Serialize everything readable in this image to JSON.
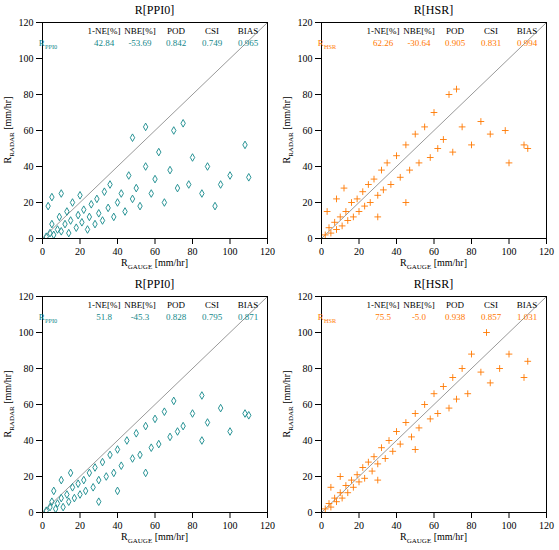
{
  "chart_data": [
    {
      "type": "scatter",
      "title": "R[PPI0]",
      "x_label": [
        "R",
        "GAUGE",
        " [mm/hr]"
      ],
      "y_label": [
        "R",
        "RADAR",
        " [mm/hr]"
      ],
      "color": "#13888a",
      "marker": "diamond",
      "xlim": [
        0,
        120
      ],
      "ylim": [
        0,
        120
      ],
      "xticks": [
        0,
        20,
        40,
        60,
        80,
        100,
        120
      ],
      "yticks": [
        0,
        20,
        40,
        60,
        80,
        100,
        120
      ],
      "stats": {
        "columns": [
          "1-NE[%]",
          "NBE[%]",
          "POD",
          "CSI",
          "BIAS"
        ],
        "row_label": [
          "R",
          "PPI0"
        ],
        "values": [
          42.84,
          -53.69,
          0.842,
          0.749,
          0.965
        ]
      },
      "x": [
        2,
        4,
        5,
        6,
        8,
        9,
        10,
        12,
        13,
        14,
        15,
        16,
        18,
        19,
        20,
        21,
        22,
        24,
        25,
        26,
        28,
        29,
        30,
        32,
        33,
        35,
        36,
        38,
        40,
        42,
        44,
        46,
        48,
        50,
        52,
        55,
        58,
        60,
        62,
        65,
        68,
        70,
        72,
        75,
        78,
        80,
        85,
        88,
        92,
        95,
        100,
        110,
        108,
        5,
        10,
        3,
        48,
        55
      ],
      "y": [
        1,
        3,
        8,
        2,
        5,
        12,
        4,
        8,
        15,
        3,
        10,
        20,
        6,
        13,
        24,
        9,
        16,
        5,
        12,
        19,
        8,
        22,
        14,
        10,
        26,
        17,
        30,
        12,
        20,
        25,
        15,
        35,
        22,
        28,
        18,
        40,
        25,
        33,
        48,
        20,
        38,
        60,
        28,
        64,
        30,
        45,
        25,
        40,
        18,
        30,
        35,
        34,
        52,
        23,
        25,
        18,
        56,
        62
      ]
    },
    {
      "type": "scatter",
      "title": "R[HSR]",
      "x_label": [
        "R",
        "GAUGE",
        " [mm/hr]"
      ],
      "y_label": [
        "R",
        "RADAR",
        " [mm/hr]"
      ],
      "color": "#ff7800",
      "marker": "plus",
      "xlim": [
        0,
        120
      ],
      "ylim": [
        0,
        120
      ],
      "xticks": [
        0,
        20,
        40,
        60,
        80,
        100,
        120
      ],
      "yticks": [
        0,
        20,
        40,
        60,
        80,
        100,
        120
      ],
      "stats": {
        "columns": [
          "1-NE[%]",
          "NBE[%]",
          "POD",
          "CSI",
          "BIAS"
        ],
        "row_label": [
          "R",
          "HSR"
        ],
        "values": [
          62.26,
          -30.64,
          0.905,
          0.831,
          0.994
        ]
      },
      "x": [
        2,
        4,
        5,
        7,
        8,
        10,
        11,
        13,
        14,
        16,
        17,
        19,
        20,
        22,
        23,
        25,
        26,
        28,
        30,
        32,
        33,
        35,
        37,
        40,
        42,
        45,
        47,
        50,
        52,
        55,
        58,
        60,
        62,
        65,
        68,
        70,
        75,
        80,
        85,
        90,
        98,
        100,
        108,
        110,
        3,
        8,
        12,
        30,
        45,
        72
      ],
      "y": [
        2,
        6,
        3,
        9,
        5,
        12,
        7,
        15,
        10,
        20,
        12,
        22,
        15,
        26,
        18,
        30,
        20,
        33,
        24,
        38,
        27,
        42,
        30,
        46,
        34,
        52,
        38,
        58,
        42,
        62,
        45,
        70,
        50,
        55,
        80,
        48,
        62,
        52,
        65,
        58,
        60,
        42,
        52,
        50,
        15,
        22,
        28,
        12,
        20,
        83
      ]
    },
    {
      "type": "scatter",
      "title": "R[PPI0]",
      "x_label": [
        "R",
        "GAUGE",
        " [mm/hr]"
      ],
      "y_label": [
        "R",
        "RADAR",
        " [mm/hr]"
      ],
      "color": "#13888a",
      "marker": "diamond",
      "xlim": [
        0,
        120
      ],
      "ylim": [
        0,
        120
      ],
      "xticks": [
        0,
        20,
        40,
        60,
        80,
        100,
        120
      ],
      "yticks": [
        0,
        20,
        40,
        60,
        80,
        100,
        120
      ],
      "stats": {
        "columns": [
          "1-NE[%]",
          "NBE[%]",
          "POD",
          "CSI",
          "BIAS"
        ],
        "row_label": [
          "R",
          "PPI0"
        ],
        "values": [
          51.8,
          -45.3,
          0.828,
          0.795,
          0.871
        ]
      },
      "x": [
        2,
        4,
        5,
        7,
        8,
        10,
        11,
        13,
        14,
        16,
        17,
        19,
        20,
        22,
        23,
        25,
        27,
        28,
        30,
        32,
        34,
        36,
        38,
        40,
        42,
        45,
        48,
        50,
        52,
        55,
        58,
        60,
        62,
        65,
        68,
        70,
        72,
        75,
        80,
        85,
        88,
        95,
        100,
        108,
        110,
        85,
        6,
        10,
        15,
        30,
        40,
        55
      ],
      "y": [
        1,
        3,
        6,
        2,
        5,
        8,
        3,
        10,
        6,
        14,
        8,
        16,
        10,
        18,
        12,
        22,
        14,
        25,
        18,
        28,
        20,
        32,
        22,
        35,
        26,
        40,
        30,
        44,
        32,
        48,
        36,
        52,
        38,
        56,
        42,
        62,
        45,
        48,
        55,
        40,
        50,
        58,
        45,
        55,
        54,
        65,
        12,
        18,
        22,
        6,
        12,
        22
      ]
    },
    {
      "type": "scatter",
      "title": "R[HSR]",
      "x_label": [
        "R",
        "GAUGE",
        " [mm/hr]"
      ],
      "y_label": [
        "R",
        "RADAR",
        " [mm/hr]"
      ],
      "color": "#ff7800",
      "marker": "plus",
      "xlim": [
        0,
        120
      ],
      "ylim": [
        0,
        120
      ],
      "xticks": [
        0,
        20,
        40,
        60,
        80,
        100,
        120
      ],
      "yticks": [
        0,
        20,
        40,
        60,
        80,
        100,
        120
      ],
      "stats": {
        "columns": [
          "1-NE[%]",
          "NBE[%]",
          "POD",
          "CSI",
          "BIAS"
        ],
        "row_label": [
          "R",
          "HSR"
        ],
        "values": [
          75.5,
          -5.0,
          0.938,
          0.857,
          1.031
        ],
        "value_labels": [
          "75.5",
          "-5.0",
          "0.938",
          "0.857",
          "1.031"
        ]
      },
      "x": [
        2,
        4,
        5,
        7,
        8,
        10,
        11,
        13,
        14,
        16,
        17,
        19,
        20,
        22,
        23,
        25,
        27,
        28,
        30,
        32,
        34,
        36,
        38,
        40,
        42,
        45,
        48,
        50,
        52,
        55,
        58,
        60,
        62,
        65,
        68,
        70,
        72,
        75,
        78,
        80,
        85,
        88,
        90,
        95,
        100,
        108,
        110,
        5,
        10,
        30,
        50
      ],
      "y": [
        2,
        5,
        3,
        8,
        6,
        11,
        8,
        15,
        11,
        18,
        14,
        21,
        17,
        25,
        19,
        28,
        23,
        31,
        27,
        36,
        30,
        40,
        34,
        45,
        38,
        50,
        42,
        55,
        47,
        60,
        52,
        66,
        55,
        70,
        58,
        75,
        63,
        80,
        66,
        88,
        78,
        100,
        72,
        80,
        88,
        75,
        84,
        14,
        20,
        18,
        35
      ]
    }
  ]
}
